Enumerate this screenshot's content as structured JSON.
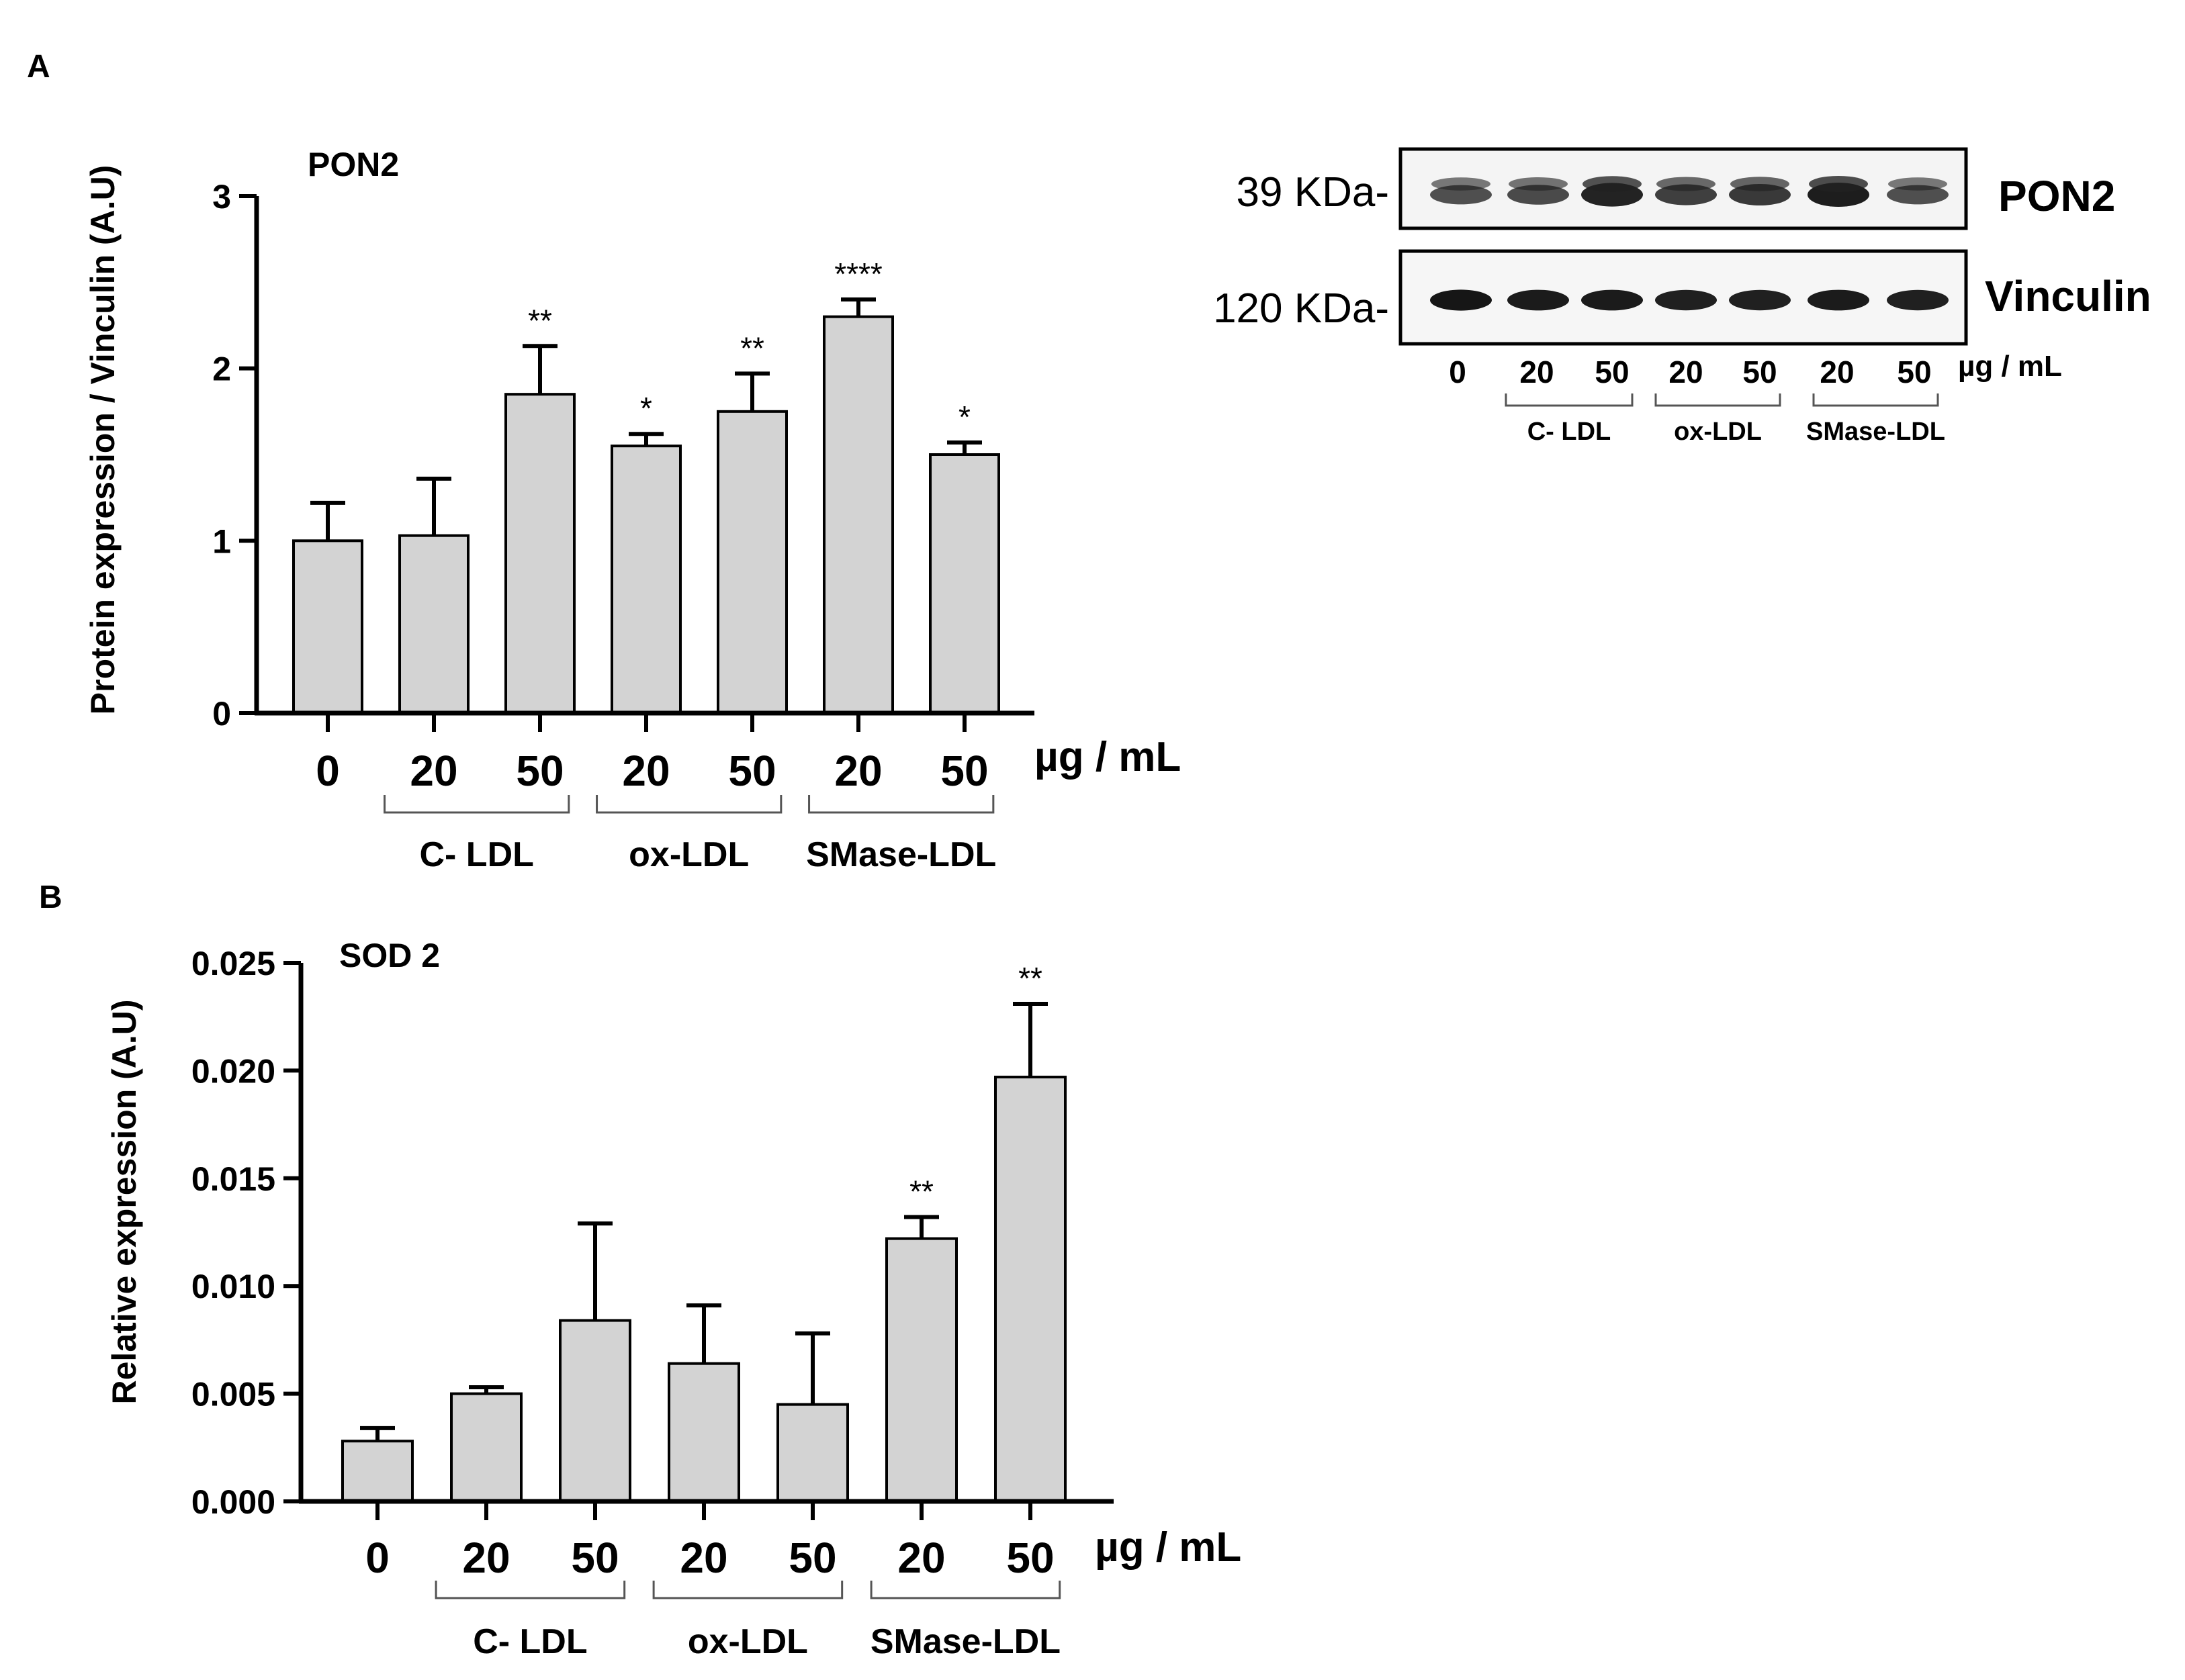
{
  "panel_labels": {
    "a": "A",
    "b": "B"
  },
  "colors": {
    "bar_fill": "#d3d3d3",
    "bar_stroke": "#000000",
    "blot_band": "#1a1a1a",
    "blot_bg": "#f4f4f4"
  },
  "group_labels": [
    "C- LDL",
    "ox-LDL",
    "SMase-LDL"
  ],
  "unit_label": "µg / mL",
  "chart_data": [
    {
      "type": "bar",
      "title": "PON2",
      "ylabel": "Protein expression / Vinculin (A.U)",
      "xlabel": "",
      "ylim": [
        0,
        3
      ],
      "yticks": [
        "0",
        "1",
        "2",
        "3"
      ],
      "ytick_values": [
        0,
        1,
        2,
        3
      ],
      "categories": [
        "0",
        "20",
        "50",
        "20",
        "50",
        "20",
        "50"
      ],
      "values": [
        1.0,
        1.03,
        1.85,
        1.55,
        1.75,
        2.3,
        1.5
      ],
      "errors": [
        0.22,
        0.33,
        0.28,
        0.07,
        0.22,
        0.1,
        0.07
      ],
      "significance": [
        "",
        "",
        "**",
        "*",
        "**",
        "****",
        "*"
      ],
      "groups": [
        {
          "label": "C- LDL",
          "from": 1,
          "to": 2
        },
        {
          "label": "ox-LDL",
          "from": 3,
          "to": 4
        },
        {
          "label": "SMase-LDL",
          "from": 5,
          "to": 6
        }
      ],
      "grid": false
    },
    {
      "type": "bar",
      "title": "SOD 2",
      "ylabel": "Relative expression (A.U)",
      "xlabel": "",
      "ylim": [
        0,
        0.025
      ],
      "yticks": [
        "0.000",
        "0.005",
        "0.010",
        "0.015",
        "0.020",
        "0.025"
      ],
      "ytick_values": [
        0,
        0.005,
        0.01,
        0.015,
        0.02,
        0.025
      ],
      "categories": [
        "0",
        "20",
        "50",
        "20",
        "50",
        "20",
        "50"
      ],
      "values": [
        0.0028,
        0.005,
        0.0084,
        0.0064,
        0.0045,
        0.0122,
        0.0197
      ],
      "errors": [
        0.0006,
        0.0003,
        0.0045,
        0.0027,
        0.0033,
        0.001,
        0.0034
      ],
      "significance": [
        "",
        "",
        "",
        "",
        "",
        "**",
        "**"
      ],
      "groups": [
        {
          "label": "C- LDL",
          "from": 1,
          "to": 2
        },
        {
          "label": "ox-LDL",
          "from": 3,
          "to": 4
        },
        {
          "label": "SMase-LDL",
          "from": 5,
          "to": 6
        }
      ],
      "grid": false
    }
  ],
  "blot": {
    "markers": [
      "39 KDa-",
      "120 KDa-"
    ],
    "proteins": [
      "PON2",
      "Vinculin"
    ],
    "lanes": [
      "0",
      "20",
      "50",
      "20",
      "50",
      "20",
      "50"
    ],
    "pon2_intensity": [
      0.55,
      0.6,
      0.95,
      0.7,
      0.75,
      1.0,
      0.55
    ],
    "vinculin_intensity": [
      0.9,
      0.85,
      0.85,
      0.8,
      0.8,
      0.85,
      0.8
    ],
    "groups": [
      "C- LDL",
      "ox-LDL",
      "SMase-LDL"
    ],
    "unit": "µg / mL"
  }
}
